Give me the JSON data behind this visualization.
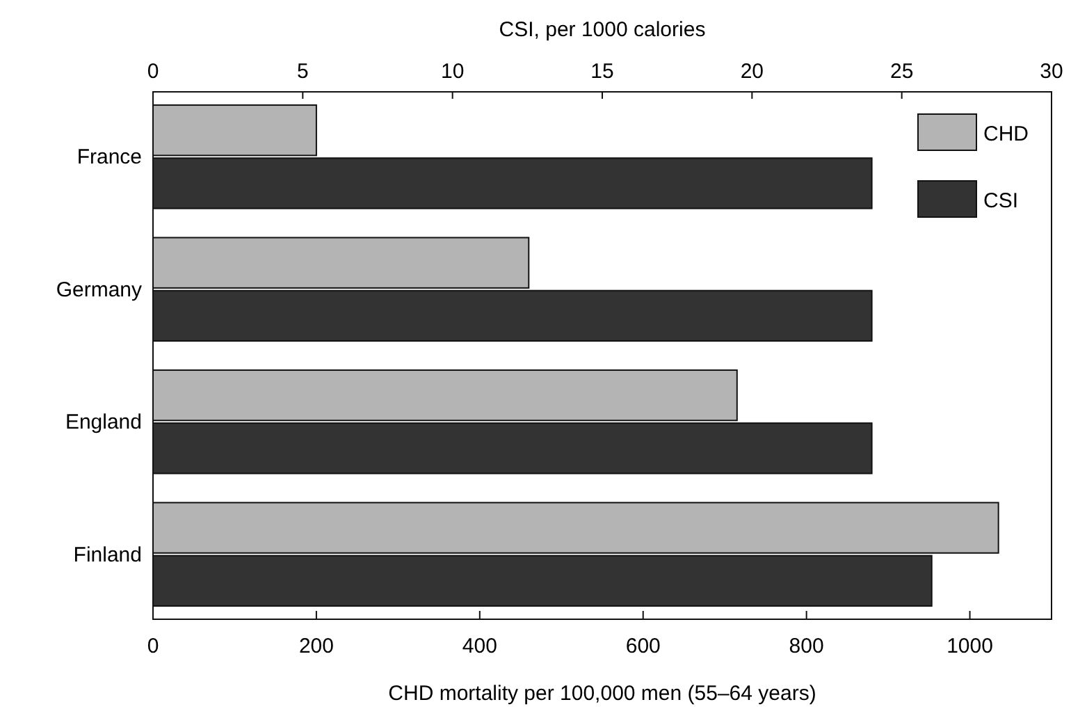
{
  "chart_data": {
    "type": "bar",
    "orientation": "horizontal",
    "categories": [
      "France",
      "Germany",
      "England",
      "Finland"
    ],
    "series": [
      {
        "name": "CHD",
        "color": "#b4b4b4",
        "values": [
          200,
          460,
          715,
          1035
        ]
      },
      {
        "name": "CSI",
        "color": "#333333",
        "values": [
          24,
          24,
          24,
          26
        ],
        "axis": "x2"
      }
    ],
    "xlabel": "CHD mortality per 100,000 men (55–64 years)",
    "x2label": "CSI, per 1000 calories",
    "xlim": [
      0,
      1100
    ],
    "xticks": [
      0,
      200,
      400,
      600,
      800,
      1000
    ],
    "x2lim": [
      0,
      30
    ],
    "x2ticks": [
      0,
      5,
      10,
      15,
      20,
      25,
      30
    ],
    "legend": "top right",
    "grid": false
  }
}
